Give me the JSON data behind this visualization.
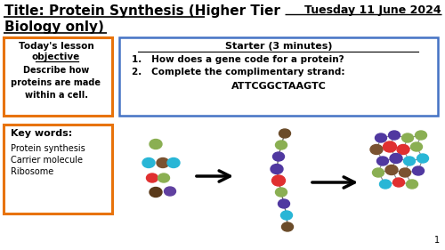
{
  "title_line1": "Title: Protein Synthesis (Higher Tier",
  "title_line2": "Biology only)",
  "date": "Tuesday 11 June 2024",
  "objective_title_line1": "Today's lesson",
  "objective_title_line2": "objective",
  "objective_body": "Describe how\nproteins are made\nwithin a cell.",
  "starter_title": "Starter (3 minutes)",
  "starter_item1": "How does a gene code for a protein?",
  "starter_item2": "Complete the complimentary strand:",
  "starter_sequence": "ATTCGGCTAAGTC",
  "keywords_title": "Key words:",
  "keywords": [
    "Protein synthesis",
    "Carrier molecule",
    "Ribosome"
  ],
  "bg_color": "#ffffff",
  "title_color": "#000000",
  "orange_box_color": "#E8730A",
  "blue_box_color": "#4472C4",
  "page_number": "1"
}
